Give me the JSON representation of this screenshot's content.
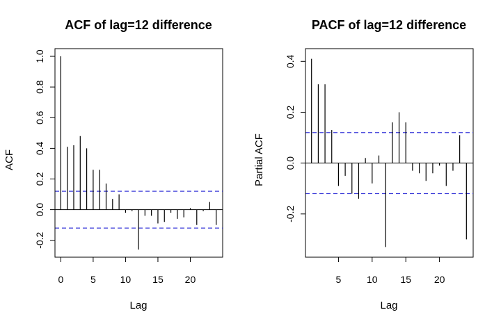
{
  "chart_data": [
    {
      "type": "bar",
      "title": "ACF of lag=12 difference",
      "xlabel": "Lag",
      "ylabel": "ACF",
      "xlim": [
        -0.9,
        25
      ],
      "ylim": [
        -0.31,
        1.05
      ],
      "x_ticks": [
        0,
        5,
        10,
        15,
        20
      ],
      "x_tick_labels": [
        "0",
        "5",
        "10",
        "15",
        "20"
      ],
      "y_ticks": [
        -0.2,
        0.0,
        0.2,
        0.4,
        0.6,
        0.8,
        1.0
      ],
      "y_tick_labels": [
        "-0.2",
        "0.0",
        "0.2",
        "0.4",
        "0.6",
        "0.8",
        "1.0"
      ],
      "confidence_bound": 0.12,
      "lags": [
        0,
        1,
        2,
        3,
        4,
        5,
        6,
        7,
        8,
        9,
        10,
        11,
        12,
        13,
        14,
        15,
        16,
        17,
        18,
        19,
        20,
        21,
        22,
        23,
        24
      ],
      "values": [
        1.0,
        0.41,
        0.42,
        0.48,
        0.4,
        0.26,
        0.26,
        0.17,
        0.07,
        0.1,
        -0.02,
        -0.01,
        -0.26,
        -0.04,
        -0.04,
        -0.09,
        -0.08,
        -0.02,
        -0.06,
        -0.05,
        0.01,
        -0.1,
        -0.01,
        0.05,
        -0.1
      ],
      "colors": {
        "bars": "#000000",
        "ci": "#3b3bd9",
        "zero": "#000000"
      }
    },
    {
      "type": "bar",
      "title": "PACF of lag=12 difference",
      "xlabel": "Lag",
      "ylabel": "Partial ACF",
      "xlim": [
        0.1,
        25
      ],
      "ylim": [
        -0.37,
        0.45
      ],
      "x_ticks": [
        5,
        10,
        15,
        20
      ],
      "x_tick_labels": [
        "5",
        "10",
        "15",
        "20"
      ],
      "y_ticks": [
        -0.2,
        0.0,
        0.2,
        0.4
      ],
      "y_tick_labels": [
        "-0.2",
        "0.0",
        "0.2",
        "0.4"
      ],
      "confidence_bound": 0.12,
      "lags": [
        1,
        2,
        3,
        4,
        5,
        6,
        7,
        8,
        9,
        10,
        11,
        12,
        13,
        14,
        15,
        16,
        17,
        18,
        19,
        20,
        21,
        22,
        23,
        24
      ],
      "values": [
        0.41,
        0.31,
        0.31,
        0.13,
        -0.09,
        -0.05,
        -0.12,
        -0.14,
        0.02,
        -0.08,
        0.03,
        -0.33,
        0.16,
        0.2,
        0.16,
        -0.03,
        -0.04,
        -0.07,
        -0.04,
        -0.01,
        -0.09,
        -0.03,
        0.11,
        -0.3
      ],
      "colors": {
        "bars": "#000000",
        "ci": "#3b3bd9",
        "zero": "#000000"
      }
    }
  ]
}
